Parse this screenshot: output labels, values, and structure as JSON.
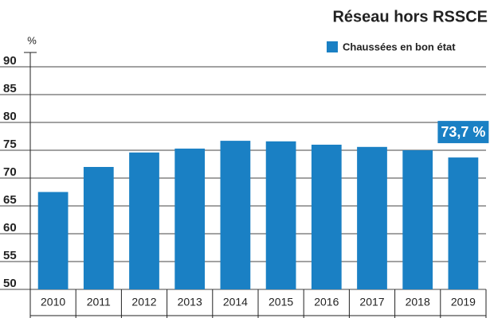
{
  "chart_data": {
    "type": "bar",
    "title": "Réseau hors RSSCE",
    "y_label": "%",
    "legend": "Chaussées en bon état",
    "annotation": "73,7 %",
    "categories": [
      "2010",
      "2011",
      "2012",
      "2013",
      "2014",
      "2015",
      "2016",
      "2017",
      "2018",
      "2019"
    ],
    "values": [
      67.5,
      72.0,
      74.6,
      75.3,
      76.7,
      76.6,
      76.0,
      75.6,
      75.0,
      73.7
    ],
    "color": "#1a80c4",
    "ylim": [
      50,
      90
    ],
    "yticks": [
      50,
      55,
      60,
      65,
      70,
      75,
      80,
      85,
      90
    ],
    "grid": true
  }
}
